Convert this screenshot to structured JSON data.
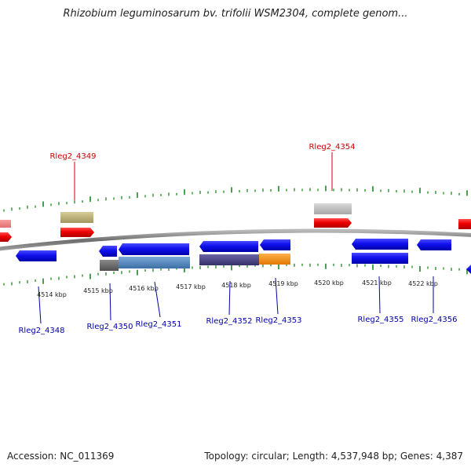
{
  "title": "Rhizobium leguminosarum bv. trifolii WSM2304, complete genom...",
  "footer": {
    "accession": "Accession: NC_011369",
    "summary": "Topology: circular; Length: 4,537,948 bp; Genes: 4,387"
  },
  "colors": {
    "backbone": "#808080",
    "tick": "#1a8a1a",
    "forward_label": "#cc0000",
    "reverse_label": "#0000aa",
    "scale_label": "#222222"
  },
  "scale_labels": [
    "4514 kbp",
    "4515 kbp",
    "4516 kbp",
    "4517 kbp",
    "4518 kbp",
    "4519 kbp",
    "4520 kbp",
    "4521 kbp",
    "4522 kbp"
  ],
  "gene_labels": {
    "forward": [
      "Rleg2_4349",
      "Rleg2_4354"
    ],
    "reverse": [
      "Rleg2_4348",
      "Rleg2_4350",
      "Rleg2_4351",
      "Rleg2_4352",
      "Rleg2_4353",
      "Rleg2_4355",
      "Rleg2_4356"
    ]
  }
}
